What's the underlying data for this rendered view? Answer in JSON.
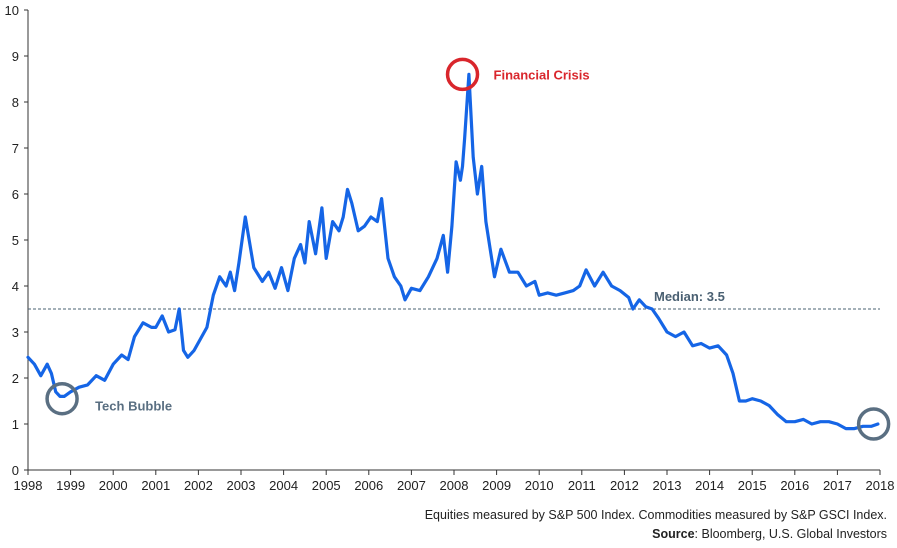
{
  "colors": {
    "series": "#1565e6",
    "median": "#4a6072",
    "crisis": "#d9262c",
    "bubble": "#5a6f82",
    "axis": "#333333"
  },
  "chart_data": {
    "type": "line",
    "title": "",
    "xlabel": "",
    "ylabel": "",
    "xlim": [
      1998,
      2018
    ],
    "ylim": [
      0,
      10
    ],
    "xticks": [
      1998,
      1999,
      2000,
      2001,
      2002,
      2003,
      2004,
      2005,
      2006,
      2007,
      2008,
      2009,
      2010,
      2011,
      2012,
      2013,
      2014,
      2015,
      2016,
      2017,
      2018
    ],
    "yticks": [
      0,
      1,
      2,
      3,
      4,
      5,
      6,
      7,
      8,
      9,
      10
    ],
    "grid": false,
    "median": {
      "value": 3.5,
      "label": "Median: 3.5"
    },
    "annotations": [
      {
        "label": "Financial Crisis",
        "x": 2008.2,
        "y": 8.6
      },
      {
        "label": "Tech Bubble",
        "x": 1998.8,
        "y": 1.55
      },
      {
        "label": "",
        "x": 2017.85,
        "y": 1.0
      }
    ],
    "series": [
      {
        "x": [
          1998.0,
          1998.15,
          1998.3,
          1998.45,
          1998.55,
          1998.65,
          1998.75,
          1998.85,
          1999.0,
          1999.2,
          1999.4,
          1999.6,
          1999.8,
          2000.0,
          2000.2,
          2000.35,
          2000.5,
          2000.7,
          2000.9,
          2001.0,
          2001.15,
          2001.3,
          2001.45,
          2001.55,
          2001.65,
          2001.75,
          2001.9,
          2002.05,
          2002.2,
          2002.35,
          2002.5,
          2002.65,
          2002.75,
          2002.85,
          2002.95,
          2003.1,
          2003.3,
          2003.5,
          2003.65,
          2003.8,
          2003.95,
          2004.1,
          2004.25,
          2004.4,
          2004.5,
          2004.6,
          2004.75,
          2004.9,
          2005.0,
          2005.15,
          2005.3,
          2005.4,
          2005.5,
          2005.6,
          2005.75,
          2005.9,
          2006.05,
          2006.2,
          2006.3,
          2006.45,
          2006.6,
          2006.75,
          2006.85,
          2007.0,
          2007.2,
          2007.4,
          2007.6,
          2007.75,
          2007.85,
          2007.95,
          2008.05,
          2008.15,
          2008.2,
          2008.25,
          2008.35,
          2008.45,
          2008.55,
          2008.65,
          2008.75,
          2008.85,
          2008.95,
          2009.1,
          2009.3,
          2009.5,
          2009.7,
          2009.9,
          2010.0,
          2010.2,
          2010.4,
          2010.6,
          2010.8,
          2010.95,
          2011.1,
          2011.3,
          2011.5,
          2011.7,
          2011.9,
          2012.1,
          2012.2,
          2012.35,
          2012.5,
          2012.65,
          2012.8,
          2013.0,
          2013.2,
          2013.4,
          2013.6,
          2013.8,
          2014.0,
          2014.2,
          2014.4,
          2014.55,
          2014.7,
          2014.85,
          2015.0,
          2015.2,
          2015.4,
          2015.6,
          2015.8,
          2016.0,
          2016.2,
          2016.4,
          2016.6,
          2016.8,
          2017.0,
          2017.2,
          2017.4,
          2017.6,
          2017.8,
          2017.95
        ],
        "y": [
          2.45,
          2.3,
          2.05,
          2.3,
          2.1,
          1.7,
          1.6,
          1.6,
          1.7,
          1.8,
          1.85,
          2.05,
          1.95,
          2.3,
          2.5,
          2.4,
          2.9,
          3.2,
          3.1,
          3.1,
          3.35,
          3.0,
          3.05,
          3.5,
          2.6,
          2.45,
          2.6,
          2.85,
          3.1,
          3.8,
          4.2,
          4.0,
          4.3,
          3.9,
          4.5,
          5.5,
          4.4,
          4.1,
          4.3,
          3.95,
          4.4,
          3.9,
          4.6,
          4.9,
          4.5,
          5.4,
          4.7,
          5.7,
          4.6,
          5.4,
          5.2,
          5.5,
          6.1,
          5.8,
          5.2,
          5.3,
          5.5,
          5.4,
          5.9,
          4.6,
          4.2,
          4.0,
          3.7,
          3.95,
          3.9,
          4.2,
          4.6,
          5.1,
          4.3,
          5.3,
          6.7,
          6.3,
          6.6,
          7.2,
          8.6,
          6.8,
          6.0,
          6.6,
          5.4,
          4.8,
          4.2,
          4.8,
          4.3,
          4.3,
          4.0,
          4.1,
          3.8,
          3.85,
          3.8,
          3.85,
          3.9,
          4.0,
          4.35,
          4.0,
          4.3,
          4.0,
          3.9,
          3.75,
          3.5,
          3.7,
          3.55,
          3.5,
          3.3,
          3.0,
          2.9,
          3.0,
          2.7,
          2.75,
          2.65,
          2.7,
          2.5,
          2.1,
          1.5,
          1.5,
          1.55,
          1.5,
          1.4,
          1.2,
          1.05,
          1.05,
          1.1,
          1.0,
          1.05,
          1.05,
          1.0,
          0.9,
          0.9,
          0.95,
          0.95,
          1.0
        ]
      }
    ]
  },
  "footnote": {
    "line1": "Equities measured by S&P 500 Index. Commodities measured by S&P GSCI Index.",
    "source_label": "Source",
    "source_text": ": Bloomberg, U.S. Global Investors"
  }
}
